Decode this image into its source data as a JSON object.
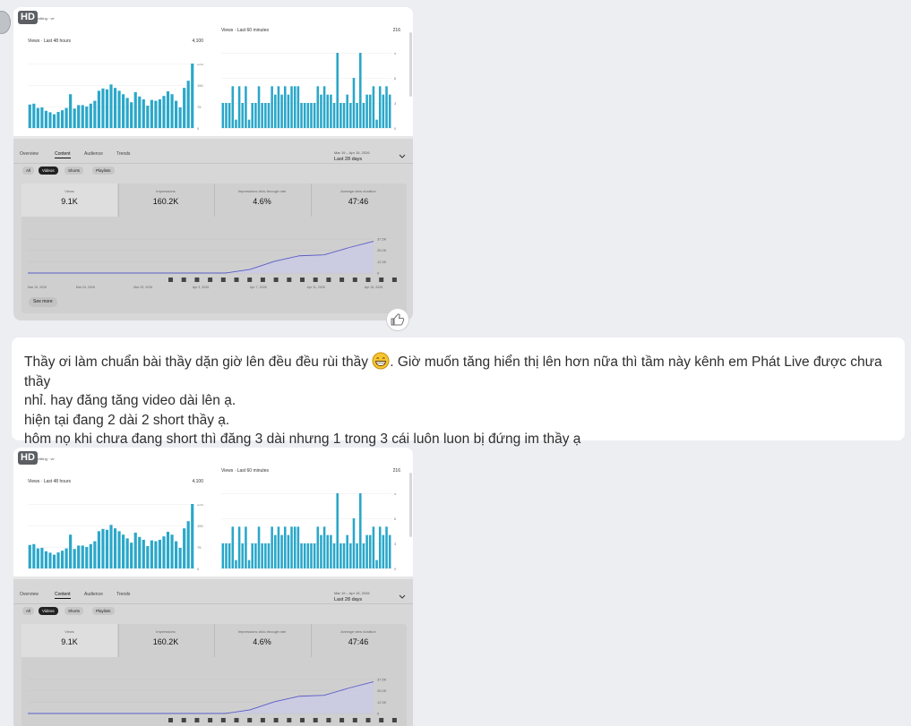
{
  "message": {
    "line1_a": "Thầy ơi làm chuẩn bài thầy dặn giờ lên đều đều rùi thầy",
    "line1_b": ".  Giờ muốn tăng hiển thị lên hơn nữa thì tầm này kênh em Phát Live được chưa thầy",
    "line2": "nhỉ. hay đăng tăng video dài lên ạ.",
    "line3": "hiện tại đang 2 dài 2 short thầy ạ.",
    "line4": "hôm nọ khi chưa đang short thì đăng 3 dài nhưng 1 trong 3 cái luôn luon bị đứng im thầy ạ",
    "emoji": "grinning-face-emoji"
  },
  "screenshot": {
    "hd_badge": "HD",
    "header_label": "editing · ve",
    "realtime_left": {
      "title": "Views · Last 48 hours",
      "total": "4,100",
      "ticks": [
        "225",
        "150",
        "75",
        "0"
      ]
    },
    "realtime_right": {
      "title": "Views · Last 60 minutes",
      "total": "216",
      "ticks": [
        "9",
        "6",
        "3",
        "0"
      ]
    },
    "tabs": [
      "Overview",
      "Content",
      "Audience",
      "Trends"
    ],
    "active_tab": "Content",
    "date_range_small": "Mar 19 – Apr 15, 2026",
    "date_range": "Last 28 days",
    "chips": [
      "All",
      "Videos",
      "Shorts",
      "Playlists"
    ],
    "active_chip": "Videos",
    "metrics": [
      {
        "label": "Views",
        "value": "9.1K"
      },
      {
        "label": "Impressions",
        "value": "160.2K"
      },
      {
        "label": "Impressions click-through rate",
        "value": "4.6%"
      },
      {
        "label": "Average view duration",
        "value": "47:46"
      }
    ],
    "line_y_ticks": [
      "37.5K",
      "25.0K",
      "12.5K",
      "0"
    ],
    "line_x_ticks": [
      "Mar 19, 2026",
      "Mar 24, 2026",
      "Mar 29, 2026",
      "Apr 3, 2026",
      "Apr 7, 2026",
      "Apr 11, 2026",
      "Apr 15, 2026"
    ],
    "see_more": "See more",
    "colors": {
      "bar": "#2aa7c9",
      "line": "#5a5cc4"
    }
  },
  "chart_data": [
    {
      "type": "bar",
      "title": "Views · Last 48 hours",
      "ylim": [
        0,
        225
      ],
      "values": [
        82,
        85,
        70,
        72,
        60,
        55,
        48,
        56,
        62,
        70,
        118,
        68,
        80,
        80,
        75,
        85,
        95,
        130,
        138,
        135,
        152,
        140,
        130,
        118,
        105,
        90,
        125,
        110,
        100,
        78,
        98,
        95,
        100,
        112,
        128,
        118,
        95,
        72,
        140,
        165,
        225
      ]
    },
    {
      "type": "bar",
      "title": "Views · Last 60 minutes",
      "ylim": [
        0,
        9
      ],
      "values": [
        3,
        3,
        3,
        5,
        1,
        5,
        3,
        5,
        1,
        3,
        3,
        5,
        3,
        3,
        3,
        5,
        4,
        5,
        4,
        5,
        4,
        5,
        5,
        5,
        3,
        3,
        3,
        3,
        3,
        5,
        4,
        5,
        4,
        4,
        3,
        9,
        3,
        3,
        4,
        3,
        6,
        3,
        9,
        3,
        4,
        4,
        5,
        1,
        5,
        4,
        5,
        4
      ]
    },
    {
      "type": "line",
      "title": "Views",
      "ylim": [
        0,
        37500
      ],
      "x": [
        "Mar 19, 2026",
        "Mar 21, 2026",
        "Mar 23, 2026",
        "Mar 25, 2026",
        "Mar 27, 2026",
        "Mar 29, 2026",
        "Mar 31, 2026",
        "Apr 2, 2026",
        "Apr 4, 2026",
        "Apr 6, 2026",
        "Apr 8, 2026",
        "Apr 10, 2026",
        "Apr 12, 2026",
        "Apr 14, 2026",
        "Apr 15, 2026"
      ],
      "values": [
        0,
        0,
        0,
        0,
        0,
        0,
        0,
        0,
        0,
        4000,
        13000,
        19000,
        20000,
        28000,
        35000
      ]
    }
  ]
}
